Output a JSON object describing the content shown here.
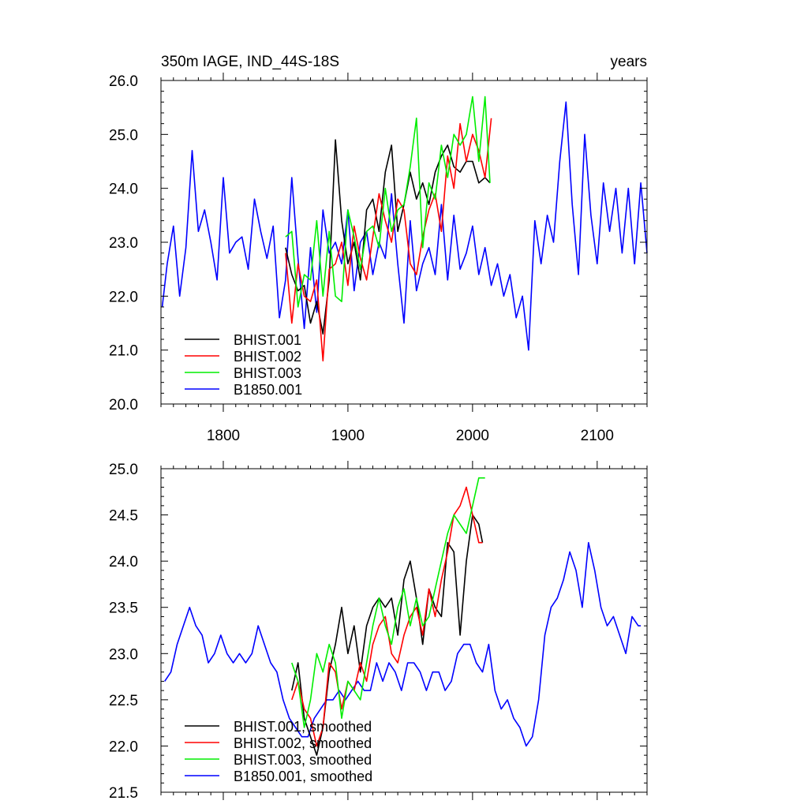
{
  "chart_data": [
    {
      "type": "line",
      "title": "350m IAGE, IND_44S-18S",
      "title_right": "years",
      "xlim": [
        1750,
        2140
      ],
      "ylim": [
        20.0,
        26.0
      ],
      "xticks": [
        1800,
        1900,
        2000,
        2100
      ],
      "xtick_labels": [
        "1800",
        "1900",
        "2000",
        "2100"
      ],
      "yticks": [
        20.0,
        21.0,
        22.0,
        23.0,
        24.0,
        25.0,
        26.0
      ],
      "ytick_labels": [
        "20.0",
        "21.0",
        "22.0",
        "23.0",
        "24.0",
        "25.0",
        "26.0"
      ],
      "legend_position": "bottom-left",
      "series": [
        {
          "name": "BHIST.001",
          "color": "#000000",
          "x": [
            1850,
            1855,
            1860,
            1865,
            1870,
            1875,
            1880,
            1885,
            1890,
            1895,
            1900,
            1905,
            1910,
            1915,
            1920,
            1925,
            1930,
            1935,
            1940,
            1945,
            1950,
            1955,
            1960,
            1965,
            1970,
            1975,
            1980,
            1985,
            1990,
            1995,
            2000,
            2005,
            2010,
            2014
          ],
          "y": [
            22.9,
            22.4,
            22.1,
            22.2,
            21.5,
            21.9,
            21.3,
            22.3,
            24.9,
            23.4,
            22.6,
            23.0,
            22.3,
            23.6,
            23.8,
            23.2,
            24.3,
            24.8,
            23.2,
            23.7,
            24.3,
            23.8,
            24.1,
            23.7,
            24.3,
            24.6,
            24.8,
            24.4,
            24.3,
            24.5,
            24.5,
            24.1,
            24.2,
            24.1
          ]
        },
        {
          "name": "BHIST.002",
          "color": "#ff0000",
          "x": [
            1850,
            1855,
            1860,
            1865,
            1870,
            1875,
            1880,
            1885,
            1890,
            1895,
            1900,
            1905,
            1910,
            1915,
            1920,
            1925,
            1930,
            1935,
            1940,
            1945,
            1950,
            1955,
            1960,
            1965,
            1970,
            1975,
            1980,
            1985,
            1990,
            1995,
            2000,
            2005,
            2010,
            2015
          ],
          "y": [
            22.8,
            21.5,
            22.6,
            22.0,
            21.9,
            22.3,
            20.8,
            22.5,
            22.6,
            23.0,
            22.2,
            23.3,
            22.7,
            22.3,
            23.1,
            23.9,
            23.4,
            23.0,
            23.8,
            23.6,
            22.6,
            22.4,
            23.1,
            23.6,
            23.9,
            23.2,
            24.6,
            24.0,
            25.2,
            24.5,
            25.0,
            24.7,
            24.2,
            25.3
          ]
        },
        {
          "name": "BHIST.003",
          "color": "#00ee00",
          "x": [
            1850,
            1855,
            1860,
            1865,
            1870,
            1875,
            1880,
            1885,
            1890,
            1895,
            1900,
            1905,
            1910,
            1915,
            1920,
            1925,
            1930,
            1935,
            1940,
            1945,
            1950,
            1955,
            1960,
            1965,
            1970,
            1975,
            1980,
            1985,
            1990,
            1995,
            2000,
            2005,
            2010,
            2014
          ],
          "y": [
            23.1,
            23.2,
            21.8,
            22.4,
            22.3,
            23.4,
            22.0,
            23.2,
            22.0,
            21.9,
            23.6,
            23.1,
            22.5,
            23.2,
            23.3,
            22.9,
            24.0,
            23.2,
            23.6,
            23.7,
            24.4,
            25.3,
            22.9,
            24.1,
            23.8,
            24.8,
            24.2,
            25.0,
            24.8,
            25.0,
            25.7,
            24.5,
            25.7,
            24.1
          ]
        },
        {
          "name": "B1850.001",
          "color": "#0000ff",
          "x": [
            1751,
            1755,
            1760,
            1765,
            1770,
            1775,
            1780,
            1785,
            1790,
            1795,
            1800,
            1805,
            1810,
            1815,
            1820,
            1825,
            1830,
            1835,
            1840,
            1845,
            1850,
            1855,
            1860,
            1865,
            1870,
            1875,
            1880,
            1885,
            1890,
            1895,
            1900,
            1905,
            1910,
            1915,
            1920,
            1925,
            1930,
            1935,
            1940,
            1945,
            1950,
            1955,
            1960,
            1965,
            1970,
            1975,
            1980,
            1985,
            1990,
            1995,
            2000,
            2005,
            2010,
            2015,
            2020,
            2025,
            2030,
            2035,
            2040,
            2045,
            2050,
            2055,
            2060,
            2065,
            2070,
            2075,
            2080,
            2085,
            2090,
            2095,
            2100,
            2105,
            2110,
            2115,
            2120,
            2125,
            2130,
            2135,
            2140
          ],
          "y": [
            21.8,
            22.6,
            23.3,
            22.0,
            22.9,
            24.7,
            23.2,
            23.6,
            23.0,
            22.3,
            24.2,
            22.8,
            23.0,
            23.1,
            22.5,
            23.8,
            23.2,
            22.7,
            23.3,
            21.6,
            22.3,
            24.2,
            22.7,
            21.4,
            22.9,
            21.7,
            23.6,
            22.8,
            23.0,
            22.6,
            23.6,
            22.1,
            23.0,
            23.2,
            22.4,
            23.0,
            22.7,
            23.9,
            22.6,
            21.5,
            23.4,
            22.1,
            22.6,
            22.9,
            22.4,
            23.7,
            22.3,
            23.5,
            22.5,
            22.8,
            23.3,
            22.4,
            22.9,
            22.2,
            22.6,
            22.0,
            22.4,
            21.6,
            22.0,
            21.0,
            23.4,
            22.6,
            23.5,
            23.0,
            24.5,
            25.6,
            23.7,
            22.4,
            25.0,
            23.5,
            22.6,
            24.1,
            23.2,
            24.0,
            22.8,
            24.0,
            22.6,
            24.1,
            22.8
          ]
        }
      ]
    },
    {
      "type": "line",
      "xlim": [
        1750,
        2140
      ],
      "ylim": [
        21.5,
        25.0
      ],
      "xticks": [
        1800,
        1900,
        2000,
        2100
      ],
      "yticks": [
        21.5,
        22.0,
        22.5,
        23.0,
        23.5,
        24.0,
        24.5,
        25.0
      ],
      "ytick_labels": [
        "21.5",
        "22.0",
        "22.5",
        "23.0",
        "23.5",
        "24.0",
        "24.5",
        "25.0"
      ],
      "legend_position": "bottom-left",
      "series": [
        {
          "name": "BHIST.001, smoothed",
          "color": "#000000",
          "x": [
            1855,
            1860,
            1865,
            1870,
            1875,
            1880,
            1885,
            1890,
            1895,
            1900,
            1905,
            1910,
            1915,
            1920,
            1925,
            1930,
            1935,
            1940,
            1945,
            1950,
            1955,
            1960,
            1965,
            1970,
            1975,
            1980,
            1985,
            1990,
            1995,
            2000,
            2005,
            2008
          ],
          "y": [
            22.6,
            22.9,
            22.3,
            22.1,
            21.9,
            22.2,
            22.8,
            23.1,
            23.5,
            23.0,
            23.3,
            22.8,
            23.3,
            23.5,
            23.6,
            23.5,
            23.6,
            23.2,
            23.8,
            24.0,
            23.6,
            23.1,
            23.7,
            23.5,
            23.4,
            24.2,
            24.1,
            23.2,
            24.0,
            24.5,
            24.4,
            24.2
          ]
        },
        {
          "name": "BHIST.002, smoothed",
          "color": "#ff0000",
          "x": [
            1855,
            1860,
            1865,
            1870,
            1875,
            1880,
            1885,
            1890,
            1895,
            1900,
            1905,
            1910,
            1915,
            1920,
            1925,
            1930,
            1935,
            1940,
            1945,
            1950,
            1955,
            1960,
            1965,
            1970,
            1975,
            1980,
            1985,
            1990,
            1995,
            2000,
            2005,
            2008
          ],
          "y": [
            22.5,
            22.7,
            22.4,
            22.3,
            22.0,
            22.2,
            22.9,
            22.8,
            22.4,
            22.7,
            22.6,
            22.9,
            22.7,
            23.1,
            23.3,
            23.4,
            23.0,
            22.9,
            23.2,
            23.4,
            23.5,
            23.2,
            23.7,
            23.4,
            23.8,
            24.1,
            24.5,
            24.6,
            24.8,
            24.5,
            24.2,
            24.2
          ]
        },
        {
          "name": "BHIST.003, smoothed",
          "color": "#00ee00",
          "x": [
            1855,
            1860,
            1865,
            1870,
            1875,
            1880,
            1885,
            1890,
            1895,
            1900,
            1905,
            1910,
            1915,
            1920,
            1925,
            1930,
            1935,
            1940,
            1945,
            1950,
            1955,
            1960,
            1965,
            1970,
            1975,
            1980,
            1985,
            1990,
            1995,
            2000,
            2005,
            2010
          ],
          "y": [
            22.9,
            22.7,
            22.2,
            22.5,
            23.0,
            22.8,
            23.1,
            22.9,
            22.3,
            22.7,
            22.6,
            22.5,
            22.9,
            23.3,
            23.6,
            23.3,
            23.1,
            23.5,
            23.7,
            23.3,
            23.6,
            23.3,
            23.4,
            23.7,
            24.0,
            24.3,
            24.5,
            24.4,
            24.3,
            24.6,
            24.9,
            24.9
          ]
        },
        {
          "name": "B1850.001, smoothed",
          "color": "#0000ff",
          "x": [
            1753,
            1758,
            1763,
            1768,
            1773,
            1778,
            1783,
            1788,
            1793,
            1798,
            1803,
            1808,
            1813,
            1818,
            1823,
            1828,
            1833,
            1838,
            1843,
            1848,
            1853,
            1858,
            1863,
            1868,
            1873,
            1878,
            1883,
            1888,
            1893,
            1898,
            1903,
            1908,
            1913,
            1918,
            1923,
            1928,
            1933,
            1938,
            1943,
            1948,
            1953,
            1958,
            1963,
            1968,
            1973,
            1978,
            1983,
            1988,
            1993,
            1998,
            2003,
            2008,
            2013,
            2018,
            2023,
            2028,
            2033,
            2038,
            2043,
            2048,
            2053,
            2058,
            2063,
            2068,
            2073,
            2078,
            2083,
            2088,
            2093,
            2098,
            2103,
            2108,
            2113,
            2118,
            2123,
            2128,
            2133,
            2135
          ],
          "y": [
            22.7,
            22.8,
            23.1,
            23.3,
            23.5,
            23.3,
            23.2,
            22.9,
            23.0,
            23.2,
            23.0,
            22.9,
            23.0,
            22.9,
            23.0,
            23.3,
            23.1,
            22.9,
            22.8,
            22.5,
            22.3,
            22.2,
            22.1,
            22.1,
            22.3,
            22.4,
            22.5,
            22.5,
            22.6,
            22.5,
            22.6,
            22.7,
            22.6,
            22.6,
            22.9,
            22.7,
            22.9,
            22.8,
            22.6,
            22.9,
            22.9,
            22.8,
            22.6,
            22.8,
            22.8,
            22.6,
            22.7,
            23.0,
            23.1,
            23.1,
            22.9,
            22.8,
            23.1,
            22.6,
            22.4,
            22.5,
            22.3,
            22.2,
            22.0,
            22.1,
            22.5,
            23.2,
            23.5,
            23.6,
            23.8,
            24.1,
            23.9,
            23.5,
            24.2,
            23.9,
            23.5,
            23.3,
            23.4,
            23.2,
            23.0,
            23.4,
            23.3,
            23.3
          ]
        }
      ]
    }
  ]
}
